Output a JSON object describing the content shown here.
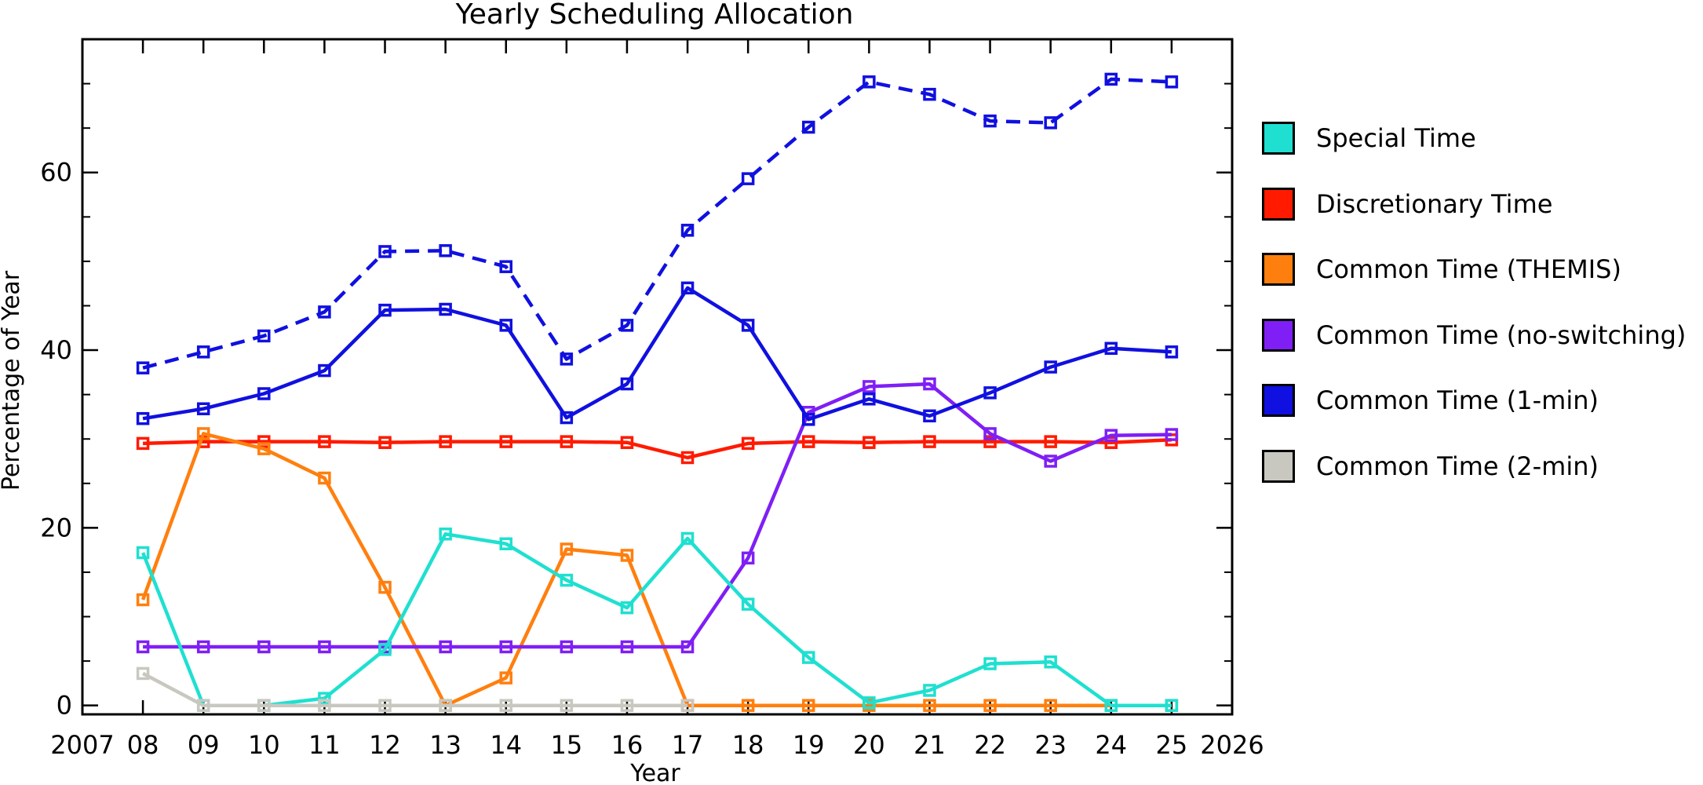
{
  "chart_data": {
    "type": "line",
    "title": "Yearly Scheduling Allocation",
    "xlabel": "Year",
    "ylabel": "Percentage of Year",
    "xlim": [
      2007,
      2026
    ],
    "ylim": [
      -1,
      75
    ],
    "x_tick_labels": [
      "2007",
      "08",
      "09",
      "10",
      "11",
      "12",
      "13",
      "14",
      "15",
      "16",
      "17",
      "18",
      "19",
      "20",
      "21",
      "22",
      "23",
      "24",
      "25",
      "2026"
    ],
    "y_tick_labels": [
      "0",
      "20",
      "40",
      "60"
    ],
    "x": [
      2008,
      2009,
      2010,
      2011,
      2012,
      2013,
      2014,
      2015,
      2016,
      2017,
      2018,
      2019,
      2020,
      2021,
      2022,
      2023,
      2024,
      2025
    ],
    "legend_position": "right",
    "series": [
      {
        "key": "total",
        "name": "",
        "color": "#1010e0",
        "style": "dashed",
        "values": [
          38.0,
          39.8,
          41.6,
          44.3,
          51.1,
          51.2,
          49.4,
          39.0,
          42.8,
          53.5,
          59.3,
          65.1,
          70.2,
          68.8,
          65.8,
          65.6,
          70.5,
          70.2
        ]
      },
      {
        "key": "discretionary",
        "name": "Discretionary Time",
        "color": "#ff1a00",
        "style": "solid",
        "values": [
          29.5,
          29.7,
          29.7,
          29.7,
          29.6,
          29.7,
          29.7,
          29.7,
          29.6,
          27.9,
          29.5,
          29.7,
          29.6,
          29.7,
          29.7,
          29.7,
          29.6,
          29.9
        ]
      },
      {
        "key": "themis",
        "name": "Common Time (THEMIS)",
        "color": "#ff7f0e",
        "style": "solid",
        "values": [
          11.9,
          30.6,
          28.9,
          25.6,
          13.3,
          0.0,
          3.1,
          17.6,
          16.9,
          0.0,
          0.0,
          0.0,
          0.0,
          0.0,
          0.0,
          0.0,
          0.0,
          0.0
        ]
      },
      {
        "key": "noswitch",
        "name": "Common Time (no-switching)",
        "color": "#7f1ff5",
        "style": "solid",
        "values": [
          6.6,
          6.6,
          6.6,
          6.6,
          6.6,
          6.6,
          6.6,
          6.6,
          6.6,
          6.6,
          16.6,
          33.0,
          35.9,
          36.2,
          30.6,
          27.5,
          30.4,
          30.5
        ]
      },
      {
        "key": "onemin",
        "name": "Common Time (1-min)",
        "color": "#1010e0",
        "style": "solid",
        "values": [
          32.3,
          33.4,
          35.1,
          37.7,
          44.5,
          44.6,
          42.8,
          32.4,
          36.2,
          47.0,
          42.8,
          32.2,
          34.5,
          32.6,
          35.2,
          38.1,
          40.2,
          39.8
        ]
      },
      {
        "key": "special",
        "name": "Special Time",
        "color": "#1fe0d0",
        "style": "solid",
        "values": [
          17.2,
          0.0,
          0.0,
          0.8,
          6.3,
          19.3,
          18.2,
          14.1,
          11.0,
          18.8,
          11.4,
          5.4,
          0.3,
          1.7,
          4.7,
          4.9,
          0.0,
          0.0
        ]
      },
      {
        "key": "twomin",
        "name": "Common Time (2-min)",
        "color": "#c8c8c0",
        "style": "solid",
        "values": [
          3.6,
          0.0,
          0.0,
          0.0,
          0.0,
          0.0,
          0.0,
          0.0,
          0.0,
          0.0,
          null,
          null,
          null,
          null,
          null,
          null,
          null,
          null
        ]
      }
    ]
  },
  "legend": [
    {
      "label": "Special Time",
      "color": "#1fe0d0"
    },
    {
      "label": "Discretionary Time",
      "color": "#ff1a00"
    },
    {
      "label": "Common Time (THEMIS)",
      "color": "#ff7f0e"
    },
    {
      "label": "Common Time (no-switching)",
      "color": "#7f1ff5"
    },
    {
      "label": "Common Time (1-min)",
      "color": "#1010e0"
    },
    {
      "label": "Common Time (2-min)",
      "color": "#c8c8c0"
    }
  ]
}
